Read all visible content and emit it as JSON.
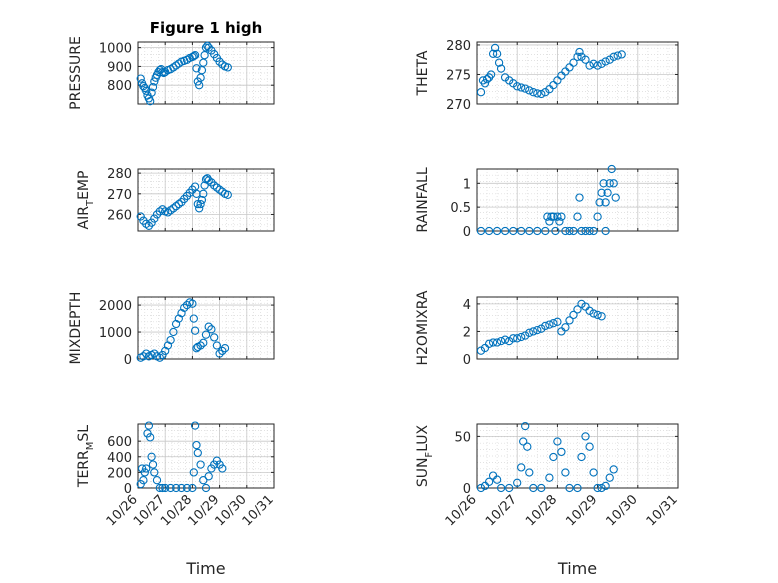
{
  "chart_data": [
    {
      "id": "pressure",
      "type": "scatter",
      "title": "Figure 1 high",
      "ylabel": "PRESSURE",
      "xlabel": "",
      "xlim": [
        26,
        31
      ],
      "ylim": [
        700,
        1030
      ],
      "yticks": [
        800,
        900,
        1000
      ],
      "ytick_labels": [
        "800",
        "900",
        "1000"
      ],
      "grid": true,
      "points": [
        [
          26.1,
          835
        ],
        [
          26.15,
          810
        ],
        [
          26.2,
          795
        ],
        [
          26.25,
          785
        ],
        [
          26.3,
          770
        ],
        [
          26.35,
          745
        ],
        [
          26.4,
          730
        ],
        [
          26.45,
          715
        ],
        [
          26.5,
          760
        ],
        [
          26.55,
          790
        ],
        [
          26.6,
          820
        ],
        [
          26.65,
          840
        ],
        [
          26.7,
          855
        ],
        [
          26.75,
          870
        ],
        [
          26.8,
          880
        ],
        [
          26.85,
          885
        ],
        [
          26.9,
          870
        ],
        [
          26.95,
          865
        ],
        [
          27.0,
          870
        ],
        [
          27.1,
          880
        ],
        [
          27.2,
          885
        ],
        [
          27.3,
          895
        ],
        [
          27.4,
          905
        ],
        [
          27.5,
          915
        ],
        [
          27.6,
          925
        ],
        [
          27.7,
          930
        ],
        [
          27.8,
          935
        ],
        [
          27.9,
          945
        ],
        [
          28.0,
          950
        ],
        [
          28.05,
          955
        ],
        [
          28.1,
          960
        ],
        [
          28.15,
          890
        ],
        [
          28.2,
          820
        ],
        [
          28.25,
          800
        ],
        [
          28.3,
          840
        ],
        [
          28.35,
          880
        ],
        [
          28.4,
          920
        ],
        [
          28.45,
          960
        ],
        [
          28.5,
          1000
        ],
        [
          28.55,
          1010
        ],
        [
          28.6,
          1000
        ],
        [
          28.7,
          985
        ],
        [
          28.8,
          965
        ],
        [
          28.9,
          945
        ],
        [
          29.0,
          925
        ],
        [
          29.1,
          910
        ],
        [
          29.2,
          900
        ],
        [
          29.3,
          895
        ]
      ]
    },
    {
      "id": "theta",
      "type": "scatter",
      "ylabel": "THETA",
      "xlabel": "",
      "xlim": [
        26,
        31
      ],
      "ylim": [
        270,
        280.5
      ],
      "yticks": [
        270,
        275,
        280
      ],
      "ytick_labels": [
        "270",
        "275",
        "280"
      ],
      "grid": true,
      "points": [
        [
          26.1,
          272
        ],
        [
          26.15,
          274
        ],
        [
          26.2,
          273.5
        ],
        [
          26.25,
          274.2
        ],
        [
          26.3,
          274.5
        ],
        [
          26.35,
          275
        ],
        [
          26.4,
          278.5
        ],
        [
          26.45,
          279.5
        ],
        [
          26.5,
          278.5
        ],
        [
          26.55,
          277
        ],
        [
          26.6,
          276
        ],
        [
          26.7,
          274.5
        ],
        [
          26.8,
          274
        ],
        [
          26.9,
          273.5
        ],
        [
          27.0,
          273
        ],
        [
          27.1,
          272.8
        ],
        [
          27.2,
          272.6
        ],
        [
          27.3,
          272.3
        ],
        [
          27.4,
          272
        ],
        [
          27.5,
          271.8
        ],
        [
          27.6,
          271.7
        ],
        [
          27.7,
          272
        ],
        [
          27.8,
          272.5
        ],
        [
          27.9,
          273.2
        ],
        [
          28.0,
          274
        ],
        [
          28.1,
          274.8
        ],
        [
          28.2,
          275.5
        ],
        [
          28.3,
          276.2
        ],
        [
          28.4,
          277
        ],
        [
          28.5,
          278
        ],
        [
          28.55,
          278.8
        ],
        [
          28.6,
          278
        ],
        [
          28.7,
          277.5
        ],
        [
          28.8,
          276.5
        ],
        [
          28.9,
          276.8
        ],
        [
          29.0,
          276.5
        ],
        [
          29.1,
          276.8
        ],
        [
          29.2,
          277.2
        ],
        [
          29.3,
          277.5
        ],
        [
          29.4,
          278
        ],
        [
          29.5,
          278.2
        ],
        [
          29.6,
          278.4
        ]
      ]
    },
    {
      "id": "air_temp",
      "type": "scatter",
      "ylabel": "AIR_TEMP",
      "ylabel_parts": [
        "AIR",
        "T",
        "EMP"
      ],
      "xlabel": "",
      "xlim": [
        26,
        31
      ],
      "ylim": [
        252,
        282
      ],
      "yticks": [
        260,
        270,
        280
      ],
      "ytick_labels": [
        "260",
        "270",
        "280"
      ],
      "grid": true,
      "points": [
        [
          26.1,
          259
        ],
        [
          26.2,
          257
        ],
        [
          26.3,
          255.5
        ],
        [
          26.4,
          254.5
        ],
        [
          26.5,
          256
        ],
        [
          26.6,
          258
        ],
        [
          26.7,
          260
        ],
        [
          26.8,
          261.5
        ],
        [
          26.9,
          262.5
        ],
        [
          27.0,
          261.5
        ],
        [
          27.1,
          261
        ],
        [
          27.2,
          262
        ],
        [
          27.3,
          263
        ],
        [
          27.4,
          264
        ],
        [
          27.5,
          265
        ],
        [
          27.6,
          266
        ],
        [
          27.7,
          267.5
        ],
        [
          27.8,
          269
        ],
        [
          27.9,
          270.5
        ],
        [
          28.0,
          272
        ],
        [
          28.1,
          273.5
        ],
        [
          28.15,
          270
        ],
        [
          28.2,
          265
        ],
        [
          28.25,
          263
        ],
        [
          28.3,
          265
        ],
        [
          28.35,
          267
        ],
        [
          28.4,
          270
        ],
        [
          28.45,
          274
        ],
        [
          28.5,
          277
        ],
        [
          28.55,
          277.5
        ],
        [
          28.6,
          276.5
        ],
        [
          28.7,
          275.5
        ],
        [
          28.8,
          274
        ],
        [
          28.9,
          273
        ],
        [
          29.0,
          272
        ],
        [
          29.1,
          271
        ],
        [
          29.2,
          270
        ],
        [
          29.3,
          269.5
        ]
      ]
    },
    {
      "id": "rainfall",
      "type": "scatter",
      "ylabel": "RAINFALL",
      "xlabel": "",
      "xlim": [
        26,
        31
      ],
      "ylim": [
        0,
        1.3
      ],
      "yticks": [
        0,
        0.5,
        1
      ],
      "ytick_labels": [
        "0",
        "0.5",
        "1"
      ],
      "grid": true,
      "points": [
        [
          26.1,
          0
        ],
        [
          26.3,
          0
        ],
        [
          26.5,
          0
        ],
        [
          26.7,
          0
        ],
        [
          26.9,
          0
        ],
        [
          27.1,
          0
        ],
        [
          27.3,
          0
        ],
        [
          27.5,
          0
        ],
        [
          27.7,
          0
        ],
        [
          27.75,
          0.3
        ],
        [
          27.8,
          0.2
        ],
        [
          27.85,
          0.3
        ],
        [
          27.9,
          0.3
        ],
        [
          27.95,
          0
        ],
        [
          28.0,
          0.3
        ],
        [
          28.05,
          0.2
        ],
        [
          28.1,
          0.3
        ],
        [
          28.2,
          0
        ],
        [
          28.3,
          0
        ],
        [
          28.4,
          0
        ],
        [
          28.5,
          0.3
        ],
        [
          28.55,
          0.7
        ],
        [
          28.6,
          0
        ],
        [
          28.7,
          0
        ],
        [
          28.8,
          0
        ],
        [
          28.9,
          0
        ],
        [
          29.0,
          0.3
        ],
        [
          29.05,
          0.6
        ],
        [
          29.1,
          0.8
        ],
        [
          29.15,
          1.0
        ],
        [
          29.2,
          0.6
        ],
        [
          29.25,
          0.8
        ],
        [
          29.3,
          1.0
        ],
        [
          29.35,
          1.3
        ],
        [
          29.4,
          1.0
        ],
        [
          29.45,
          0.7
        ],
        [
          29.2,
          0
        ]
      ]
    },
    {
      "id": "mixdepth",
      "type": "scatter",
      "ylabel": "MIXDEPTH",
      "xlabel": "",
      "xlim": [
        26,
        31
      ],
      "ylim": [
        0,
        2300
      ],
      "yticks": [
        0,
        1000,
        2000
      ],
      "ytick_labels": [
        "0",
        "1000",
        "2000"
      ],
      "grid": true,
      "points": [
        [
          26.1,
          50
        ],
        [
          26.2,
          100
        ],
        [
          26.3,
          200
        ],
        [
          26.4,
          100
        ],
        [
          26.5,
          150
        ],
        [
          26.6,
          200
        ],
        [
          26.7,
          100
        ],
        [
          26.8,
          50
        ],
        [
          26.9,
          150
        ],
        [
          27.0,
          300
        ],
        [
          27.1,
          500
        ],
        [
          27.2,
          700
        ],
        [
          27.3,
          1000
        ],
        [
          27.4,
          1300
        ],
        [
          27.5,
          1500
        ],
        [
          27.6,
          1700
        ],
        [
          27.7,
          1900
        ],
        [
          27.8,
          2000
        ],
        [
          27.9,
          2100
        ],
        [
          28.0,
          2050
        ],
        [
          28.05,
          1500
        ],
        [
          28.1,
          1050
        ],
        [
          28.15,
          400
        ],
        [
          28.2,
          450
        ],
        [
          28.3,
          500
        ],
        [
          28.4,
          600
        ],
        [
          28.5,
          900
        ],
        [
          28.6,
          1200
        ],
        [
          28.7,
          1100
        ],
        [
          28.8,
          800
        ],
        [
          28.9,
          500
        ],
        [
          29.0,
          200
        ],
        [
          29.1,
          300
        ],
        [
          29.2,
          400
        ]
      ]
    },
    {
      "id": "h2omixra",
      "type": "scatter",
      "ylabel": "H2OMIXRA",
      "xlabel": "",
      "xlim": [
        26,
        31
      ],
      "ylim": [
        0,
        4.5
      ],
      "yticks": [
        0,
        2,
        4
      ],
      "ytick_labels": [
        "0",
        "2",
        "4"
      ],
      "grid": true,
      "points": [
        [
          26.1,
          0.6
        ],
        [
          26.2,
          0.8
        ],
        [
          26.3,
          1.1
        ],
        [
          26.4,
          1.2
        ],
        [
          26.5,
          1.2
        ],
        [
          26.6,
          1.3
        ],
        [
          26.7,
          1.4
        ],
        [
          26.8,
          1.3
        ],
        [
          26.9,
          1.5
        ],
        [
          27.0,
          1.5
        ],
        [
          27.1,
          1.6
        ],
        [
          27.2,
          1.7
        ],
        [
          27.3,
          1.9
        ],
        [
          27.4,
          2.0
        ],
        [
          27.5,
          2.1
        ],
        [
          27.6,
          2.2
        ],
        [
          27.7,
          2.4
        ],
        [
          27.8,
          2.5
        ],
        [
          27.9,
          2.6
        ],
        [
          28.0,
          2.7
        ],
        [
          28.1,
          2.0
        ],
        [
          28.2,
          2.3
        ],
        [
          28.3,
          2.8
        ],
        [
          28.4,
          3.2
        ],
        [
          28.5,
          3.6
        ],
        [
          28.6,
          4.0
        ],
        [
          28.7,
          3.8
        ],
        [
          28.8,
          3.5
        ],
        [
          28.9,
          3.3
        ],
        [
          29.0,
          3.2
        ],
        [
          29.1,
          3.1
        ]
      ]
    },
    {
      "id": "terr_msl",
      "type": "scatter",
      "ylabel": "TERR_MSL",
      "ylabel_parts": [
        "TERR",
        "M",
        "SL"
      ],
      "xlabel": "Time",
      "xlim": [
        26,
        31
      ],
      "ylim": [
        0,
        820
      ],
      "yticks": [
        0,
        200,
        400,
        600
      ],
      "ytick_labels": [
        "0",
        "200",
        "400",
        "600"
      ],
      "xtick_labels": [
        "10/26",
        "10/27",
        "10/28",
        "10/29",
        "10/30",
        "10/31"
      ],
      "grid": true,
      "points": [
        [
          26.1,
          50
        ],
        [
          26.15,
          250
        ],
        [
          26.2,
          100
        ],
        [
          26.25,
          200
        ],
        [
          26.3,
          250
        ],
        [
          26.35,
          700
        ],
        [
          26.4,
          800
        ],
        [
          26.45,
          650
        ],
        [
          26.5,
          400
        ],
        [
          26.55,
          300
        ],
        [
          26.6,
          200
        ],
        [
          26.7,
          100
        ],
        [
          26.8,
          0
        ],
        [
          26.9,
          0
        ],
        [
          27.0,
          0
        ],
        [
          27.2,
          0
        ],
        [
          27.4,
          0
        ],
        [
          27.6,
          0
        ],
        [
          27.8,
          0
        ],
        [
          28.0,
          0
        ],
        [
          28.05,
          200
        ],
        [
          28.1,
          800
        ],
        [
          28.15,
          550
        ],
        [
          28.2,
          450
        ],
        [
          28.3,
          300
        ],
        [
          28.4,
          100
        ],
        [
          28.5,
          0
        ],
        [
          28.6,
          150
        ],
        [
          28.7,
          250
        ],
        [
          28.8,
          300
        ],
        [
          28.9,
          350
        ],
        [
          29.0,
          300
        ],
        [
          29.1,
          250
        ]
      ]
    },
    {
      "id": "sun_flux",
      "type": "scatter",
      "ylabel": "SUN_FLUX",
      "ylabel_parts": [
        "SUN",
        "F",
        "LUX"
      ],
      "xlabel": "Time",
      "xlim": [
        26,
        31
      ],
      "ylim": [
        0,
        62
      ],
      "yticks": [
        0,
        50
      ],
      "ytick_labels": [
        "0",
        "50"
      ],
      "xtick_labels": [
        "10/26",
        "10/27",
        "10/28",
        "10/29",
        "10/30",
        "10/31"
      ],
      "grid": true,
      "points": [
        [
          26.1,
          0
        ],
        [
          26.2,
          2
        ],
        [
          26.3,
          6
        ],
        [
          26.4,
          12
        ],
        [
          26.5,
          8
        ],
        [
          26.6,
          0
        ],
        [
          26.8,
          0
        ],
        [
          27.0,
          5
        ],
        [
          27.1,
          20
        ],
        [
          27.15,
          45
        ],
        [
          27.2,
          60
        ],
        [
          27.25,
          40
        ],
        [
          27.3,
          15
        ],
        [
          27.4,
          0
        ],
        [
          27.6,
          0
        ],
        [
          27.8,
          10
        ],
        [
          27.9,
          30
        ],
        [
          28.0,
          45
        ],
        [
          28.1,
          35
        ],
        [
          28.2,
          15
        ],
        [
          28.3,
          0
        ],
        [
          28.5,
          0
        ],
        [
          28.6,
          30
        ],
        [
          28.7,
          50
        ],
        [
          28.8,
          40
        ],
        [
          28.9,
          15
        ],
        [
          29.0,
          0
        ],
        [
          29.1,
          0
        ],
        [
          29.2,
          2
        ],
        [
          29.3,
          10
        ],
        [
          29.4,
          18
        ]
      ]
    }
  ]
}
